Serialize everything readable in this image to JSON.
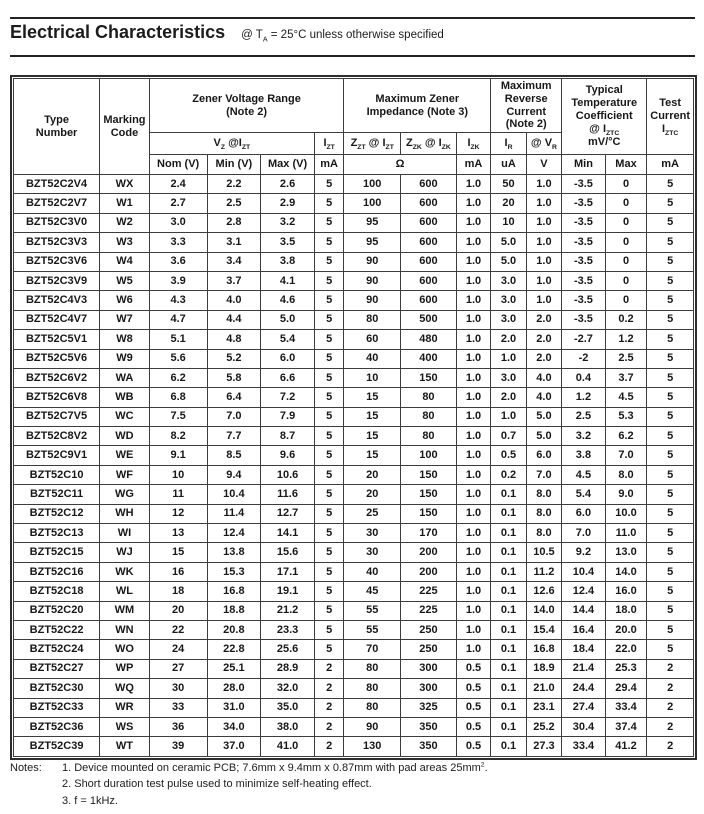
{
  "page": {
    "title": "Electrical Characteristics",
    "condition": "@ T~A~ = 25°C unless otherwise specified"
  },
  "table": {
    "header": {
      "type_number": "Type\nNumber",
      "marking_code": "Marking\nCode",
      "zener_voltage_range": "Zener Voltage Range\n(Note 2)",
      "max_zener_impedance": "Maximum Zener\nImpedance (Note 3)",
      "max_reverse_current": "Maximum\nReverse\nCurrent\n(Note 2)",
      "typ_temp_coefficient": "Typical\nTemperature\nCoefficient\n@ I~ZTC~\nmV/°C",
      "test_current": "Test\nCurrent\nI~ZTC~",
      "vz_at_izt": "V~Z~ @I~ZT~",
      "izt": "I~ZT~",
      "zzt_at_izt": "Z~ZT~ @ I~ZT~",
      "zzk_at_izk": "Z~ZK~ @ I~ZK~",
      "izk": "I~ZK~",
      "ir": "I~R~",
      "at_vr": "@ V~R~"
    },
    "units": {
      "nom": "Nom (V)",
      "min": "Min (V)",
      "max": "Max (V)",
      "izt_ma": "mA",
      "ohm": "Ω",
      "izk_ma": "mA",
      "ir_ua": "uA",
      "vr_v": "V",
      "tc_min": "Min",
      "tc_max": "Max",
      "test_ma": "mA"
    },
    "rows": [
      [
        "BZT52C2V4",
        "WX",
        "2.4",
        "2.2",
        "2.6",
        "5",
        "100",
        "600",
        "1.0",
        "50",
        "1.0",
        "-3.5",
        "0",
        "5"
      ],
      [
        "BZT52C2V7",
        "W1",
        "2.7",
        "2.5",
        "2.9",
        "5",
        "100",
        "600",
        "1.0",
        "20",
        "1.0",
        "-3.5",
        "0",
        "5"
      ],
      [
        "BZT52C3V0",
        "W2",
        "3.0",
        "2.8",
        "3.2",
        "5",
        "95",
        "600",
        "1.0",
        "10",
        "1.0",
        "-3.5",
        "0",
        "5"
      ],
      [
        "BZT52C3V3",
        "W3",
        "3.3",
        "3.1",
        "3.5",
        "5",
        "95",
        "600",
        "1.0",
        "5.0",
        "1.0",
        "-3.5",
        "0",
        "5"
      ],
      [
        "BZT52C3V6",
        "W4",
        "3.6",
        "3.4",
        "3.8",
        "5",
        "90",
        "600",
        "1.0",
        "5.0",
        "1.0",
        "-3.5",
        "0",
        "5"
      ],
      [
        "BZT52C3V9",
        "W5",
        "3.9",
        "3.7",
        "4.1",
        "5",
        "90",
        "600",
        "1.0",
        "3.0",
        "1.0",
        "-3.5",
        "0",
        "5"
      ],
      [
        "BZT52C4V3",
        "W6",
        "4.3",
        "4.0",
        "4.6",
        "5",
        "90",
        "600",
        "1.0",
        "3.0",
        "1.0",
        "-3.5",
        "0",
        "5"
      ],
      [
        "BZT52C4V7",
        "W7",
        "4.7",
        "4.4",
        "5.0",
        "5",
        "80",
        "500",
        "1.0",
        "3.0",
        "2.0",
        "-3.5",
        "0.2",
        "5"
      ],
      [
        "BZT52C5V1",
        "W8",
        "5.1",
        "4.8",
        "5.4",
        "5",
        "60",
        "480",
        "1.0",
        "2.0",
        "2.0",
        "-2.7",
        "1.2",
        "5"
      ],
      [
        "BZT52C5V6",
        "W9",
        "5.6",
        "5.2",
        "6.0",
        "5",
        "40",
        "400",
        "1.0",
        "1.0",
        "2.0",
        "-2",
        "2.5",
        "5"
      ],
      [
        "BZT52C6V2",
        "WA",
        "6.2",
        "5.8",
        "6.6",
        "5",
        "10",
        "150",
        "1.0",
        "3.0",
        "4.0",
        "0.4",
        "3.7",
        "5"
      ],
      [
        "BZT52C6V8",
        "WB",
        "6.8",
        "6.4",
        "7.2",
        "5",
        "15",
        "80",
        "1.0",
        "2.0",
        "4.0",
        "1.2",
        "4.5",
        "5"
      ],
      [
        "BZT52C7V5",
        "WC",
        "7.5",
        "7.0",
        "7.9",
        "5",
        "15",
        "80",
        "1.0",
        "1.0",
        "5.0",
        "2.5",
        "5.3",
        "5"
      ],
      [
        "BZT52C8V2",
        "WD",
        "8.2",
        "7.7",
        "8.7",
        "5",
        "15",
        "80",
        "1.0",
        "0.7",
        "5.0",
        "3.2",
        "6.2",
        "5"
      ],
      [
        "BZT52C9V1",
        "WE",
        "9.1",
        "8.5",
        "9.6",
        "5",
        "15",
        "100",
        "1.0",
        "0.5",
        "6.0",
        "3.8",
        "7.0",
        "5"
      ],
      [
        "BZT52C10",
        "WF",
        "10",
        "9.4",
        "10.6",
        "5",
        "20",
        "150",
        "1.0",
        "0.2",
        "7.0",
        "4.5",
        "8.0",
        "5"
      ],
      [
        "BZT52C11",
        "WG",
        "11",
        "10.4",
        "11.6",
        "5",
        "20",
        "150",
        "1.0",
        "0.1",
        "8.0",
        "5.4",
        "9.0",
        "5"
      ],
      [
        "BZT52C12",
        "WH",
        "12",
        "11.4",
        "12.7",
        "5",
        "25",
        "150",
        "1.0",
        "0.1",
        "8.0",
        "6.0",
        "10.0",
        "5"
      ],
      [
        "BZT52C13",
        "WI",
        "13",
        "12.4",
        "14.1",
        "5",
        "30",
        "170",
        "1.0",
        "0.1",
        "8.0",
        "7.0",
        "11.0",
        "5"
      ],
      [
        "BZT52C15",
        "WJ",
        "15",
        "13.8",
        "15.6",
        "5",
        "30",
        "200",
        "1.0",
        "0.1",
        "10.5",
        "9.2",
        "13.0",
        "5"
      ],
      [
        "BZT52C16",
        "WK",
        "16",
        "15.3",
        "17.1",
        "5",
        "40",
        "200",
        "1.0",
        "0.1",
        "11.2",
        "10.4",
        "14.0",
        "5"
      ],
      [
        "BZT52C18",
        "WL",
        "18",
        "16.8",
        "19.1",
        "5",
        "45",
        "225",
        "1.0",
        "0.1",
        "12.6",
        "12.4",
        "16.0",
        "5"
      ],
      [
        "BZT52C20",
        "WM",
        "20",
        "18.8",
        "21.2",
        "5",
        "55",
        "225",
        "1.0",
        "0.1",
        "14.0",
        "14.4",
        "18.0",
        "5"
      ],
      [
        "BZT52C22",
        "WN",
        "22",
        "20.8",
        "23.3",
        "5",
        "55",
        "250",
        "1.0",
        "0.1",
        "15.4",
        "16.4",
        "20.0",
        "5"
      ],
      [
        "BZT52C24",
        "WO",
        "24",
        "22.8",
        "25.6",
        "5",
        "70",
        "250",
        "1.0",
        "0.1",
        "16.8",
        "18.4",
        "22.0",
        "5"
      ],
      [
        "BZT52C27",
        "WP",
        "27",
        "25.1",
        "28.9",
        "2",
        "80",
        "300",
        "0.5",
        "0.1",
        "18.9",
        "21.4",
        "25.3",
        "2"
      ],
      [
        "BZT52C30",
        "WQ",
        "30",
        "28.0",
        "32.0",
        "2",
        "80",
        "300",
        "0.5",
        "0.1",
        "21.0",
        "24.4",
        "29.4",
        "2"
      ],
      [
        "BZT52C33",
        "WR",
        "33",
        "31.0",
        "35.0",
        "2",
        "80",
        "325",
        "0.5",
        "0.1",
        "23.1",
        "27.4",
        "33.4",
        "2"
      ],
      [
        "BZT52C36",
        "WS",
        "36",
        "34.0",
        "38.0",
        "2",
        "90",
        "350",
        "0.5",
        "0.1",
        "25.2",
        "30.4",
        "37.4",
        "2"
      ],
      [
        "BZT52C39",
        "WT",
        "39",
        "37.0",
        "41.0",
        "2",
        "130",
        "350",
        "0.5",
        "0.1",
        "27.3",
        "33.4",
        "41.2",
        "2"
      ]
    ]
  },
  "notes": {
    "label": "Notes:",
    "items": [
      "1. Device mounted on ceramic PCB; 7.6mm x 9.4mm x 0.87mm with pad areas 25mm^2^.",
      "2. Short duration test pulse used to minimize self-heating effect.",
      "3. f = 1kHz."
    ]
  }
}
